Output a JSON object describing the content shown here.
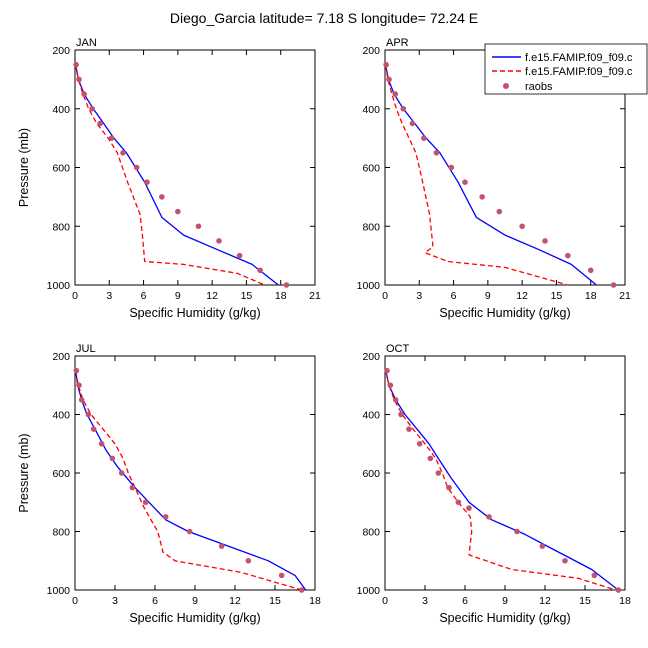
{
  "figure_title": "Diego_Garcia  latitude= 7.18 S longitude= 72.24 E",
  "legend": [
    {
      "label": "f.e15.FAMIP.f09_f09.c",
      "color": "#0000ff",
      "dash": "solid"
    },
    {
      "label": "f.e15.FAMIP.f09_f09.c",
      "color": "#ff0000",
      "dash": "dashed"
    },
    {
      "label": "raobs",
      "color": "#c2536e",
      "dash": "marker"
    }
  ],
  "chart_data": [
    {
      "type": "line",
      "title": "JAN",
      "xlabel": "Specific Humidity (g/kg)",
      "ylabel": "Pressure (mb)",
      "xlim": [
        0,
        21
      ],
      "ylim": [
        200,
        1000
      ],
      "y_reversed": true,
      "xticks": [
        0,
        3,
        6,
        9,
        12,
        15,
        18,
        21
      ],
      "yticks": [
        200,
        400,
        600,
        800,
        1000
      ],
      "series": [
        {
          "name": "f.e15.FAMIP.f09_f09.c (solid)",
          "color": "#0000ff",
          "dash": "solid",
          "x": [
            0.05,
            0.3,
            0.8,
            1.6,
            2.5,
            3.4,
            4.5,
            6.1,
            7.6,
            9.5,
            12.5,
            15.5,
            17.8
          ],
          "y": [
            250,
            300,
            350,
            400,
            450,
            500,
            550,
            650,
            770,
            830,
            880,
            930,
            1000
          ]
        },
        {
          "name": "f.e15.FAMIP.f09_f09.c (dashed)",
          "color": "#ff0000",
          "dash": "dashed",
          "x": [
            0.05,
            0.3,
            0.7,
            1.2,
            1.9,
            2.9,
            3.7,
            4.6,
            5.7,
            5.9,
            6.1,
            9.5,
            14.2,
            16.6
          ],
          "y": [
            250,
            300,
            350,
            400,
            450,
            500,
            550,
            650,
            760,
            830,
            920,
            930,
            960,
            1000
          ]
        },
        {
          "name": "raobs",
          "color": "#c2536e",
          "dash": "marker",
          "x": [
            0.1,
            0.35,
            0.8,
            1.5,
            2.2,
            3.2,
            4.2,
            5.4,
            6.3,
            7.6,
            9.0,
            10.8,
            12.6,
            14.4,
            16.2,
            18.5
          ],
          "y": [
            250,
            300,
            350,
            400,
            450,
            500,
            550,
            600,
            650,
            700,
            750,
            800,
            850,
            900,
            950,
            1000
          ]
        }
      ]
    },
    {
      "type": "line",
      "title": "APR",
      "xlabel": "Specific Humidity (g/kg)",
      "ylabel": "",
      "xlim": [
        0,
        21
      ],
      "ylim": [
        200,
        1000
      ],
      "y_reversed": true,
      "xticks": [
        0,
        3,
        6,
        9,
        12,
        15,
        18,
        21
      ],
      "yticks": [
        200,
        400,
        600,
        800,
        1000
      ],
      "series": [
        {
          "name": "f.e15.FAMIP.f09_f09.c (solid)",
          "color": "#0000ff",
          "dash": "solid",
          "x": [
            0.05,
            0.3,
            0.8,
            1.6,
            2.6,
            3.6,
            4.8,
            6.4,
            8.0,
            10.5,
            13.5,
            16.3,
            18.5
          ],
          "y": [
            250,
            300,
            350,
            400,
            450,
            500,
            550,
            650,
            770,
            830,
            880,
            930,
            1000
          ]
        },
        {
          "name": "f.e15.FAMIP.f09_f09.c (dashed)",
          "color": "#ff0000",
          "dash": "dashed",
          "x": [
            0.05,
            0.25,
            0.6,
            1.0,
            1.5,
            2.1,
            2.7,
            3.3,
            3.9,
            4.2,
            3.5,
            5.5,
            10.5,
            16.0
          ],
          "y": [
            250,
            300,
            350,
            400,
            450,
            500,
            550,
            650,
            760,
            870,
            890,
            920,
            940,
            1000
          ]
        },
        {
          "name": "raobs",
          "color": "#c2536e",
          "dash": "marker",
          "x": [
            0.1,
            0.35,
            0.9,
            1.6,
            2.4,
            3.4,
            4.5,
            5.8,
            7.0,
            8.5,
            10.0,
            12.0,
            14.0,
            16.0,
            18.0,
            20.0
          ],
          "y": [
            250,
            300,
            350,
            400,
            450,
            500,
            550,
            600,
            650,
            700,
            750,
            800,
            850,
            900,
            950,
            1000
          ]
        }
      ]
    },
    {
      "type": "line",
      "title": "JUL",
      "xlabel": "Specific Humidity (g/kg)",
      "ylabel": "Pressure (mb)",
      "xlim": [
        0,
        18
      ],
      "ylim": [
        200,
        1000
      ],
      "y_reversed": true,
      "xticks": [
        0,
        3,
        6,
        9,
        12,
        15,
        18
      ],
      "yticks": [
        200,
        400,
        600,
        800,
        1000
      ],
      "series": [
        {
          "name": "f.e15.FAMIP.f09_f09.c (solid)",
          "color": "#0000ff",
          "dash": "solid",
          "x": [
            0.05,
            0.2,
            0.5,
            0.9,
            1.5,
            2.3,
            3.2,
            4.5,
            6.8,
            8.5,
            11.5,
            14.5,
            16.5,
            17.3
          ],
          "y": [
            250,
            300,
            350,
            400,
            450,
            520,
            580,
            650,
            760,
            800,
            850,
            900,
            950,
            1000
          ]
        },
        {
          "name": "f.e15.FAMIP.f09_f09.c (dashed)",
          "color": "#ff0000",
          "dash": "dashed",
          "x": [
            0.05,
            0.25,
            0.6,
            1.2,
            2.1,
            3.0,
            3.6,
            4.0,
            4.5,
            5.2,
            6.2,
            6.6,
            7.5,
            12.5,
            17.0
          ],
          "y": [
            250,
            300,
            350,
            400,
            450,
            500,
            550,
            600,
            650,
            720,
            800,
            870,
            900,
            940,
            1000
          ]
        },
        {
          "name": "raobs",
          "color": "#c2536e",
          "dash": "marker",
          "x": [
            0.1,
            0.3,
            0.5,
            1.0,
            1.4,
            2.0,
            2.8,
            3.5,
            4.3,
            5.3,
            6.8,
            8.6,
            11.0,
            13.0,
            15.5,
            17.0
          ],
          "y": [
            250,
            300,
            350,
            400,
            450,
            500,
            550,
            600,
            650,
            700,
            750,
            800,
            850,
            900,
            950,
            1000
          ]
        }
      ]
    },
    {
      "type": "line",
      "title": "OCT",
      "xlabel": "Specific Humidity (g/kg)",
      "ylabel": "",
      "xlim": [
        0,
        18
      ],
      "ylim": [
        200,
        1000
      ],
      "y_reversed": true,
      "xticks": [
        0,
        3,
        6,
        9,
        12,
        15,
        18
      ],
      "yticks": [
        200,
        400,
        600,
        800,
        1000
      ],
      "series": [
        {
          "name": "f.e15.FAMIP.f09_f09.c (solid)",
          "color": "#0000ff",
          "dash": "solid",
          "x": [
            0.05,
            0.3,
            0.8,
            1.5,
            2.4,
            3.3,
            4.0,
            5.0,
            6.3,
            8.0,
            10.5,
            13.0,
            15.5,
            17.5
          ],
          "y": [
            250,
            300,
            350,
            400,
            450,
            500,
            550,
            620,
            700,
            760,
            810,
            870,
            930,
            1000
          ]
        },
        {
          "name": "f.e15.FAMIP.f09_f09.c (dashed)",
          "color": "#ff0000",
          "dash": "dashed",
          "x": [
            0.05,
            0.3,
            0.7,
            1.3,
            2.1,
            3.0,
            3.8,
            4.3,
            4.7,
            5.5,
            6.4,
            6.5,
            6.3,
            9.5,
            14.5,
            17.3
          ],
          "y": [
            250,
            300,
            350,
            400,
            450,
            500,
            550,
            600,
            650,
            700,
            750,
            800,
            880,
            930,
            960,
            1000
          ]
        },
        {
          "name": "raobs",
          "color": "#c2536e",
          "dash": "marker",
          "x": [
            0.15,
            0.4,
            0.8,
            1.2,
            1.8,
            2.6,
            3.4,
            4.0,
            4.8,
            5.5,
            6.3,
            7.8,
            9.9,
            11.8,
            13.5,
            15.7,
            17.5
          ],
          "y": [
            250,
            300,
            350,
            400,
            450,
            500,
            550,
            600,
            650,
            700,
            720,
            750,
            800,
            850,
            900,
            950,
            1000
          ]
        }
      ]
    }
  ]
}
